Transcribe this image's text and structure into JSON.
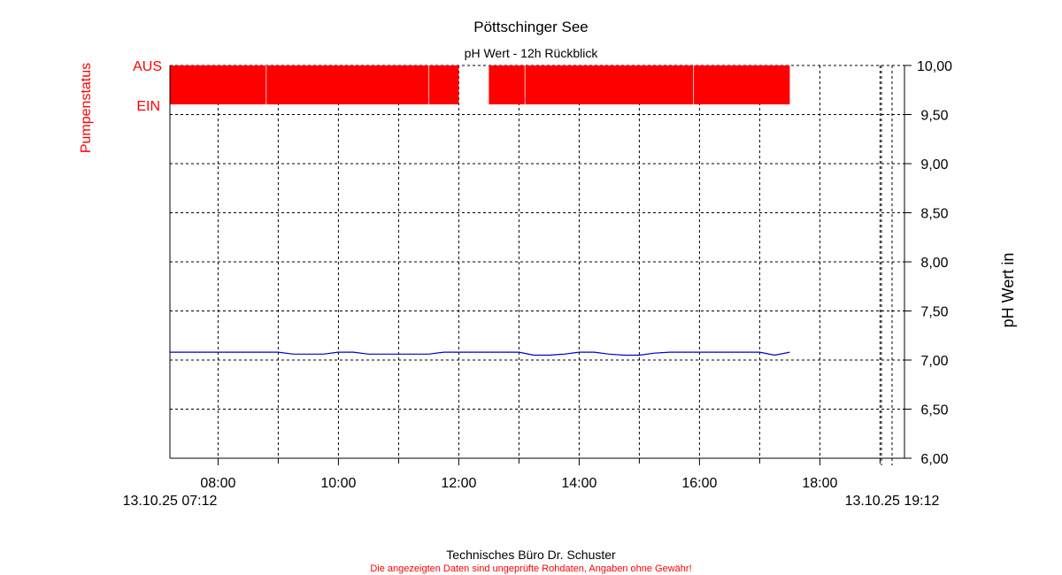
{
  "chart_data": {
    "type": "line",
    "title": "Pöttschinger See",
    "subtitle": "pH Wert - 12h Rückblick",
    "ylabel_right": "pH Wert in",
    "ylabel_left": "Pumpenstatus",
    "status_labels": {
      "off": "AUS",
      "on": "EIN"
    },
    "ylim": [
      6.0,
      10.0
    ],
    "y_ticks": [
      "6,00",
      "6,50",
      "7,00",
      "7,50",
      "8,00",
      "8,50",
      "9,00",
      "9,50",
      "10,00"
    ],
    "x_range": [
      "07:12",
      "19:12"
    ],
    "x_ticks": [
      "08:00",
      "10:00",
      "12:00",
      "14:00",
      "16:00",
      "18:00"
    ],
    "x_start_label": "13.10.25 07:12",
    "x_end_label": "13.10.25 19:12",
    "grid": true,
    "series": [
      {
        "color": "#0000c8",
        "x": [
          "07:12",
          "08:00",
          "09:00",
          "09:15",
          "09:45",
          "10:00",
          "10:15",
          "10:30",
          "11:00",
          "11:30",
          "11:45",
          "12:00",
          "13:00",
          "13:15",
          "13:30",
          "13:45",
          "14:00",
          "14:15",
          "14:30",
          "14:45",
          "15:00",
          "15:15",
          "15:30",
          "16:00",
          "16:30",
          "17:00",
          "17:15",
          "17:30"
        ],
        "values": [
          7.08,
          7.08,
          7.08,
          7.06,
          7.06,
          7.08,
          7.08,
          7.06,
          7.06,
          7.06,
          7.08,
          7.08,
          7.08,
          7.05,
          7.05,
          7.06,
          7.08,
          7.08,
          7.06,
          7.05,
          7.05,
          7.07,
          7.08,
          7.08,
          7.08,
          7.08,
          7.05,
          7.08
        ]
      }
    ],
    "pump_status": {
      "color": "#ff0000",
      "segments": [
        {
          "start": "07:12",
          "end": "08:48"
        },
        {
          "start": "08:48",
          "end": "11:30"
        },
        {
          "start": "11:30",
          "end": "12:00"
        },
        {
          "start": "12:30",
          "end": "13:06"
        },
        {
          "start": "13:06",
          "end": "15:54"
        },
        {
          "start": "15:54",
          "end": "17:30"
        }
      ]
    }
  },
  "footer": {
    "company": "Technisches Büro Dr. Schuster",
    "disclaimer": "Die angezeigten Daten sind ungeprüfte Rohdaten, Angaben ohne Gewähr!"
  }
}
